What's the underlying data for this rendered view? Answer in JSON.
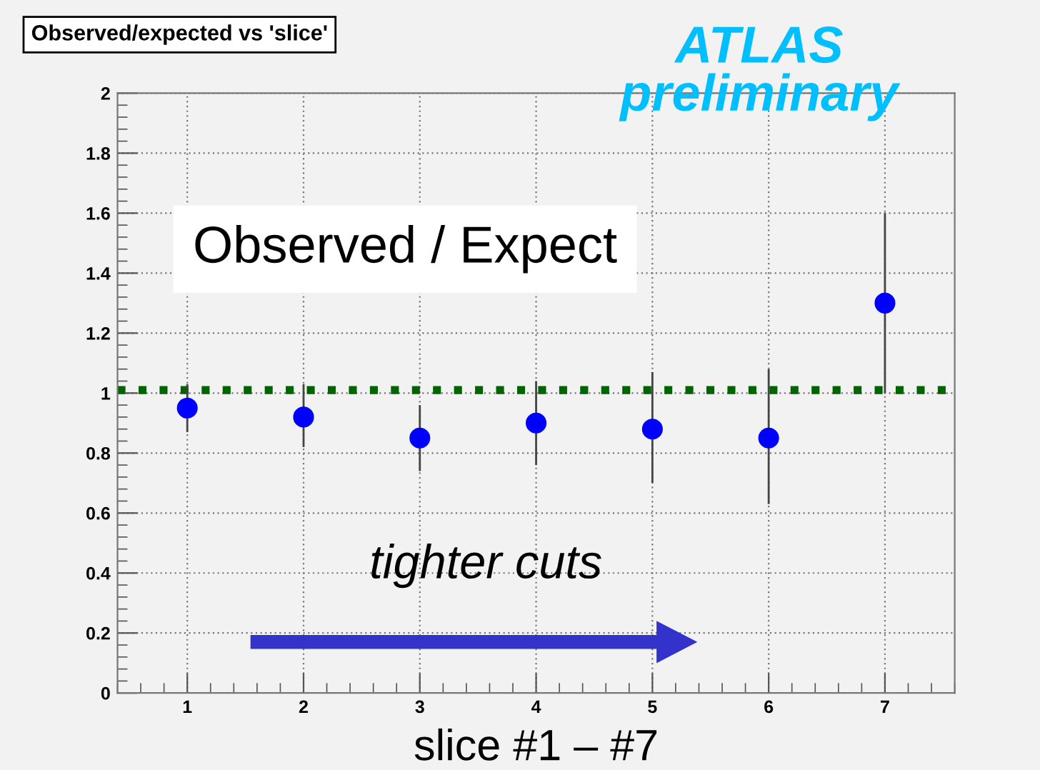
{
  "chart_data": {
    "type": "scatter",
    "title": "Observed/expected vs 'slice'",
    "xlabel": "slice #1 – #7",
    "annotations": [
      "ATLAS\npreliminary",
      "Observed / Expect",
      "tighter cuts"
    ],
    "x": [
      1,
      2,
      3,
      4,
      5,
      6,
      7
    ],
    "series": [
      {
        "color": "#0000ff",
        "values": [
          0.95,
          0.92,
          0.85,
          0.9,
          0.88,
          0.85,
          1.3
        ],
        "errors": [
          [
            0.87,
            1.03
          ],
          [
            0.82,
            1.03
          ],
          [
            0.74,
            0.96
          ],
          [
            0.76,
            1.04
          ],
          [
            0.7,
            1.07
          ],
          [
            0.63,
            1.08
          ],
          [
            1.0,
            1.6
          ]
        ]
      }
    ],
    "xlim": [
      0.4,
      7.6
    ],
    "ylim": [
      0,
      2
    ],
    "xticks": [
      1,
      2,
      3,
      4,
      5,
      6,
      7
    ],
    "yticks": [
      0,
      0.2,
      0.4,
      0.6,
      0.8,
      1,
      1.2,
      1.4,
      1.6,
      1.8,
      2
    ],
    "ref_lines": [
      {
        "axis": "y",
        "value": 1.01,
        "color": "#006400",
        "line_style": "dotted"
      }
    ],
    "grid": true,
    "marker": "circle",
    "legend": false
  }
}
